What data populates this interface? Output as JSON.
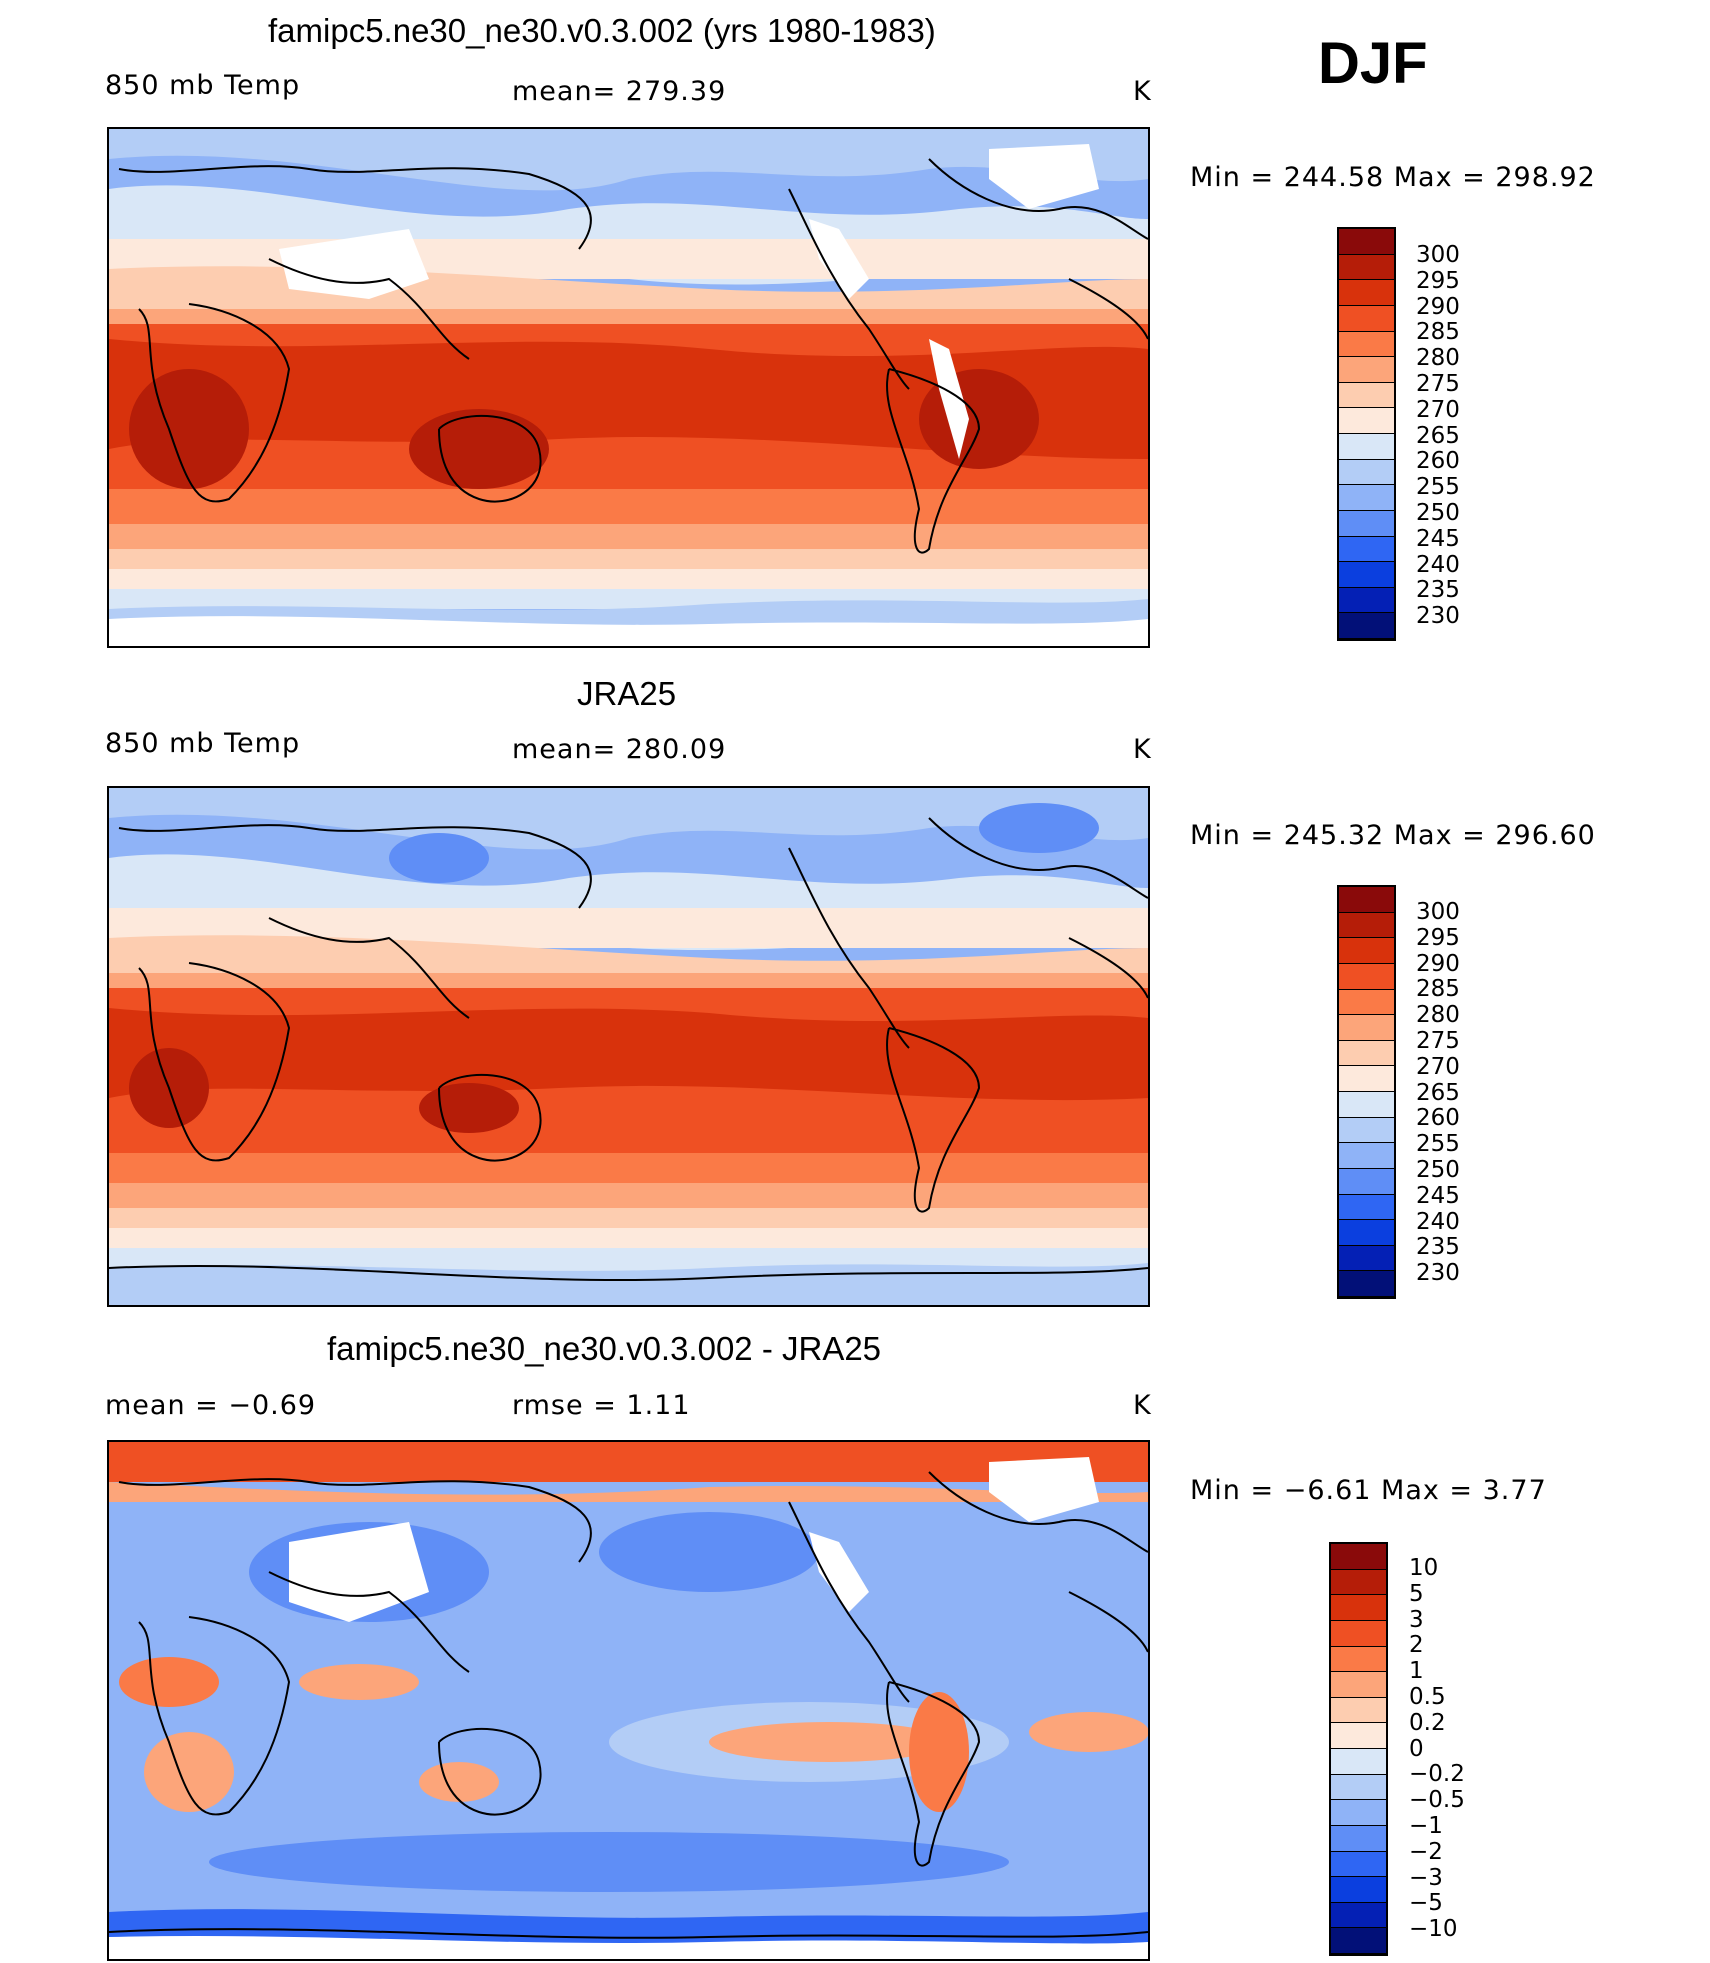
{
  "season": "DJF",
  "panels": [
    {
      "title": "famipc5.ne30_ne30.v0.3.002 (yrs 1980-1983)",
      "left_label": "850 mb Temp",
      "center_label": "mean= 279.39",
      "right_label": "K",
      "minmax": "Min  =  244.58  Max  =  298.92",
      "colorbar": {
        "labels": [
          "300",
          "295",
          "290",
          "285",
          "280",
          "275",
          "270",
          "265",
          "260",
          "255",
          "250",
          "245",
          "240",
          "235",
          "230"
        ],
        "colors": [
          "#8a0a0a",
          "#b51d08",
          "#d8320c",
          "#ef5023",
          "#fa7a47",
          "#fca57a",
          "#fdcdb0",
          "#fde9dc",
          "#d9e7f7",
          "#b3cdf6",
          "#8fb3f7",
          "#5f8ef6",
          "#2f66f3",
          "#0b3fdf",
          "#0420b5",
          "#021078"
        ]
      }
    },
    {
      "title": "JRA25",
      "left_label": "850 mb Temp",
      "center_label": "mean= 280.09",
      "right_label": "K",
      "minmax": "Min  =  245.32  Max  =  296.60",
      "colorbar": {
        "labels": [
          "300",
          "295",
          "290",
          "285",
          "280",
          "275",
          "270",
          "265",
          "260",
          "255",
          "250",
          "245",
          "240",
          "235",
          "230"
        ],
        "colors": [
          "#8a0a0a",
          "#b51d08",
          "#d8320c",
          "#ef5023",
          "#fa7a47",
          "#fca57a",
          "#fdcdb0",
          "#fde9dc",
          "#d9e7f7",
          "#b3cdf6",
          "#8fb3f7",
          "#5f8ef6",
          "#2f66f3",
          "#0b3fdf",
          "#0420b5",
          "#021078"
        ]
      }
    },
    {
      "title": "famipc5.ne30_ne30.v0.3.002 - JRA25",
      "left_label": "mean =    −0.69",
      "center_label": "rmse =     1.11",
      "right_label": "K",
      "minmax": "Min  =    −6.61  Max  =     3.77",
      "colorbar": {
        "labels": [
          "10",
          "5",
          "3",
          "2",
          "1",
          "0.5",
          "0.2",
          "0",
          "−0.2",
          "−0.5",
          "−1",
          "−2",
          "−3",
          "−5",
          "−10"
        ],
        "colors": [
          "#8a0a0a",
          "#b51d08",
          "#d8320c",
          "#ef5023",
          "#fa7a47",
          "#fca57a",
          "#fdcdb0",
          "#fde9dc",
          "#d9e7f7",
          "#b3cdf6",
          "#8fb3f7",
          "#5f8ef6",
          "#2f66f3",
          "#0b3fdf",
          "#0420b5",
          "#021078"
        ]
      }
    }
  ]
}
